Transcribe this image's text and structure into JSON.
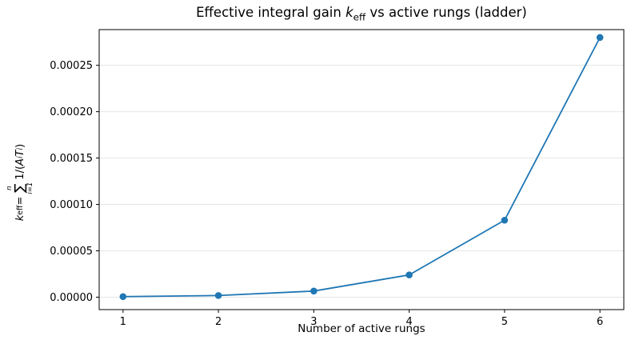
{
  "title": {
    "prefix": "Effective integral gain ",
    "k_var": "k",
    "k_sub": "eff",
    "suffix": " vs active rungs (ladder)"
  },
  "xlabel": "Number of active rungs",
  "ylabel": {
    "k_var": "k",
    "k_sub": "eff",
    "equals": " = ",
    "sum_upper": "n",
    "sigma": "∑",
    "sum_lower": "i=1",
    "numerator": "1/(",
    "A_var": "A",
    "A_sub": "i",
    "T_var": "T",
    "T_sub": "i",
    "close_paren": ")"
  },
  "chart_data": {
    "type": "line",
    "title": "Effective integral gain k_eff vs active rungs (ladder)",
    "xlabel": "Number of active rungs",
    "ylabel": "k_eff = sum_{i=1}^{n} 1/(A_i T_i)",
    "x": [
      1,
      2,
      3,
      4,
      5,
      6
    ],
    "values": [
      6e-07,
      1.8e-06,
      6.6e-06,
      2.4e-05,
      8.3e-05,
      0.00028
    ],
    "series_name": "k_eff",
    "x_tick_labels": [
      "1",
      "2",
      "3",
      "4",
      "5",
      "6"
    ],
    "y_ticks": [
      0,
      5e-05,
      0.0001,
      0.00015,
      0.0002,
      0.00025
    ],
    "y_tick_labels": [
      "0.00000",
      "0.00005",
      "0.00010",
      "0.00015",
      "0.00020",
      "0.00025"
    ],
    "xlim": [
      0.75,
      6.25
    ],
    "ylim": [
      -1.34e-05,
      0.0002885
    ],
    "grid": "horizontal",
    "legend": "none",
    "line_color": "#1f77b4",
    "marker": "circle",
    "marker_size": 4.3,
    "grid_color": "#e6e6e6",
    "spine_color": "#000000",
    "tick_label_color": "#000000",
    "background_color": "#ffffff"
  }
}
